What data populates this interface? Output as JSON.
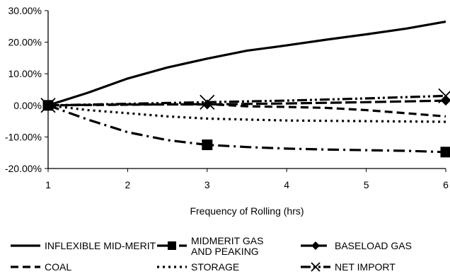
{
  "chart_data": {
    "type": "line",
    "title": "",
    "xlabel": "Frequency of Rolling (hrs)",
    "ylabel": "",
    "x_ticks": [
      1,
      2,
      3,
      4,
      5,
      6
    ],
    "xlim": [
      1,
      6
    ],
    "y_ticks": [
      -20,
      -10,
      0,
      10,
      20,
      30
    ],
    "y_tick_labels": [
      "-20.00%",
      "-10.00%",
      "0.00%",
      "10.00%",
      "20.00%",
      "30.00%"
    ],
    "ylim": [
      -20,
      30
    ],
    "grid": false,
    "legend_position": "bottom",
    "series": [
      {
        "name": "INFLEXIBLE MID-MERIT",
        "line": "solid",
        "marker": "none",
        "x": [
          1,
          1.5,
          2,
          2.5,
          3,
          3.5,
          4,
          4.5,
          5,
          5.5,
          6
        ],
        "y": [
          0,
          4.0,
          8.5,
          12.0,
          14.8,
          17.3,
          19.0,
          20.8,
          22.5,
          24.3,
          26.5
        ]
      },
      {
        "name": "MIDMERIT GAS AND PEAKING",
        "line": "dashdot",
        "marker": "square",
        "x": [
          1,
          1.5,
          2,
          2.5,
          3,
          3.5,
          4,
          4.5,
          5,
          5.5,
          6
        ],
        "y": [
          0,
          -4.5,
          -8.5,
          -11.0,
          -12.5,
          -13.2,
          -13.7,
          -14.0,
          -14.2,
          -14.4,
          -14.8
        ]
      },
      {
        "name": "BASELOAD GAS",
        "line": "longdash",
        "marker": "diamond",
        "x": [
          1,
          2,
          3,
          4,
          5,
          6
        ],
        "y": [
          0,
          0.3,
          0.3,
          0.6,
          1.0,
          1.5
        ]
      },
      {
        "name": "COAL",
        "line": "dashed",
        "marker": "none",
        "x": [
          1,
          2,
          3,
          3.5,
          4,
          4.5,
          5,
          5.5,
          6
        ],
        "y": [
          0,
          0.2,
          0.4,
          -0.3,
          -0.5,
          -0.8,
          -1.5,
          -2.5,
          -3.5
        ]
      },
      {
        "name": "STORAGE",
        "line": "dotted",
        "marker": "none",
        "x": [
          1,
          1.5,
          2,
          2.5,
          3,
          4,
          5,
          6
        ],
        "y": [
          0,
          -1.5,
          -2.5,
          -3.5,
          -4.2,
          -4.8,
          -5.0,
          -5.2
        ]
      },
      {
        "name": "NET IMPORT",
        "line": "dashdotdot",
        "marker": "x",
        "x": [
          1,
          2,
          3,
          4,
          5,
          6
        ],
        "y": [
          0,
          0.5,
          1.0,
          1.5,
          2.2,
          3.0
        ]
      }
    ]
  },
  "legend": {
    "items": [
      {
        "label_lines": [
          "INFLEXIBLE MID-MERIT"
        ]
      },
      {
        "label_lines": [
          "MIDMERIT GAS",
          "AND PEAKING"
        ]
      },
      {
        "label_lines": [
          "BASELOAD GAS"
        ]
      },
      {
        "label_lines": [
          "COAL"
        ]
      },
      {
        "label_lines": [
          "STORAGE"
        ]
      },
      {
        "label_lines": [
          "NET IMPORT"
        ]
      }
    ]
  }
}
